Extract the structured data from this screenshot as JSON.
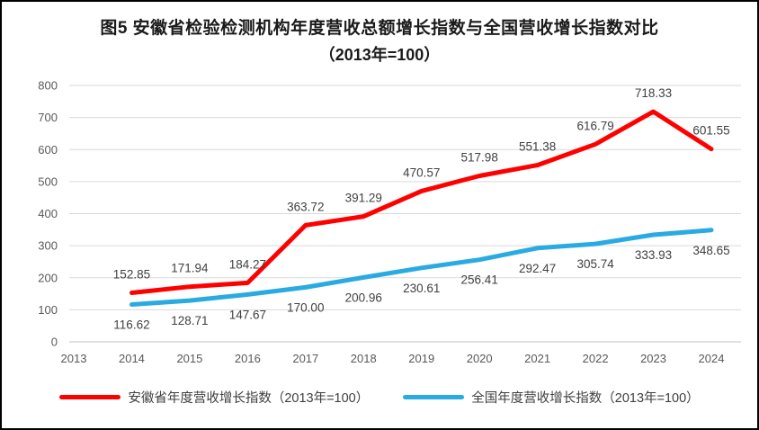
{
  "figure": {
    "title_line1": "图5  安徽省检验检测机构年度营收总额增长指数与全国营收增长指数对比",
    "title_line2": "（2013年=100）"
  },
  "chart_data": {
    "type": "line",
    "categories": [
      "2013",
      "2014",
      "2015",
      "2016",
      "2017",
      "2018",
      "2019",
      "2020",
      "2021",
      "2022",
      "2023",
      "2024"
    ],
    "series": [
      {
        "name": "安徽省年度营收增长指数（2013年=100）",
        "color": "#FF0000",
        "x_start_index": 1,
        "values": [
          152.85,
          171.94,
          184.27,
          363.72,
          391.29,
          470.57,
          517.98,
          551.38,
          616.79,
          718.33,
          601.55
        ],
        "labels": [
          "152.85",
          "171.94",
          "184.27",
          "363.72",
          "391.29",
          "470.57",
          "517.98",
          "551.38",
          "616.79",
          "718.33",
          "601.55"
        ],
        "label_position": "above"
      },
      {
        "name": "全国年度营收增长指数（2013年=100）",
        "color": "#29ABE2",
        "x_start_index": 1,
        "values": [
          116.62,
          128.71,
          147.67,
          170.0,
          200.96,
          230.61,
          256.41,
          292.47,
          305.74,
          333.93,
          348.65
        ],
        "labels": [
          "116.62",
          "128.71",
          "147.67",
          "170.00",
          "200.96",
          "230.61",
          "256.41",
          "292.47",
          "305.74",
          "333.93",
          "348.65"
        ],
        "label_position": "below"
      }
    ],
    "ylim": [
      0,
      800
    ],
    "ytick_step": 100,
    "grid": true,
    "legend_position": "bottom",
    "gridline_color": "#D9D9D9",
    "axis_line_color": "#C0C0C0",
    "axis_text_color": "#595959",
    "data_label_color": "#404040"
  }
}
